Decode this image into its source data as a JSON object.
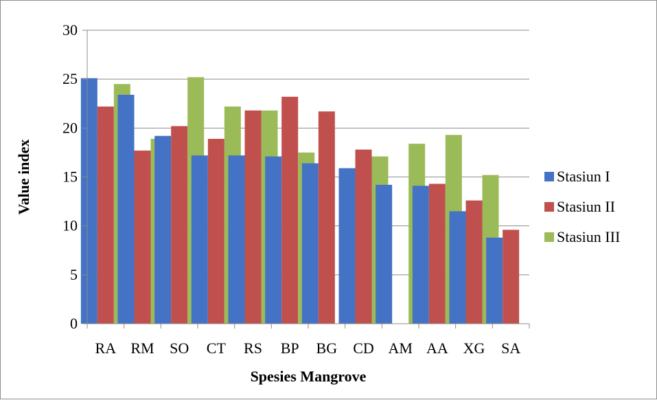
{
  "chart_data": {
    "type": "bar",
    "categories": [
      "RA",
      "RM",
      "SO",
      "CT",
      "RS",
      "BP",
      "BG",
      "CD",
      "AM",
      "AA",
      "XG",
      "SA"
    ],
    "series": [
      {
        "name": "Stasiun I",
        "color": "#4472C4",
        "values": [
          25.1,
          23.4,
          19.2,
          17.2,
          17.2,
          17.1,
          16.4,
          15.9,
          14.2,
          14.1,
          11.5,
          8.8
        ]
      },
      {
        "name": "Stasiun II",
        "color": "#C0504D",
        "values": [
          22.2,
          17.7,
          20.2,
          18.9,
          21.8,
          23.2,
          21.7,
          17.8,
          null,
          14.3,
          12.6,
          9.6
        ]
      },
      {
        "name": "Stasiun III",
        "color": "#9BBB59",
        "values": [
          24.5,
          18.9,
          25.2,
          22.2,
          21.8,
          17.5,
          null,
          17.1,
          18.4,
          19.3,
          15.2,
          null
        ]
      }
    ],
    "title": "",
    "xlabel": "Spesies Mangrove",
    "ylabel": "Value  index",
    "ylim": [
      0,
      30
    ],
    "yticks": [
      "0",
      "5",
      "10",
      "15",
      "20",
      "25",
      "30"
    ],
    "grid": "horizontal",
    "legend_position": "right"
  }
}
